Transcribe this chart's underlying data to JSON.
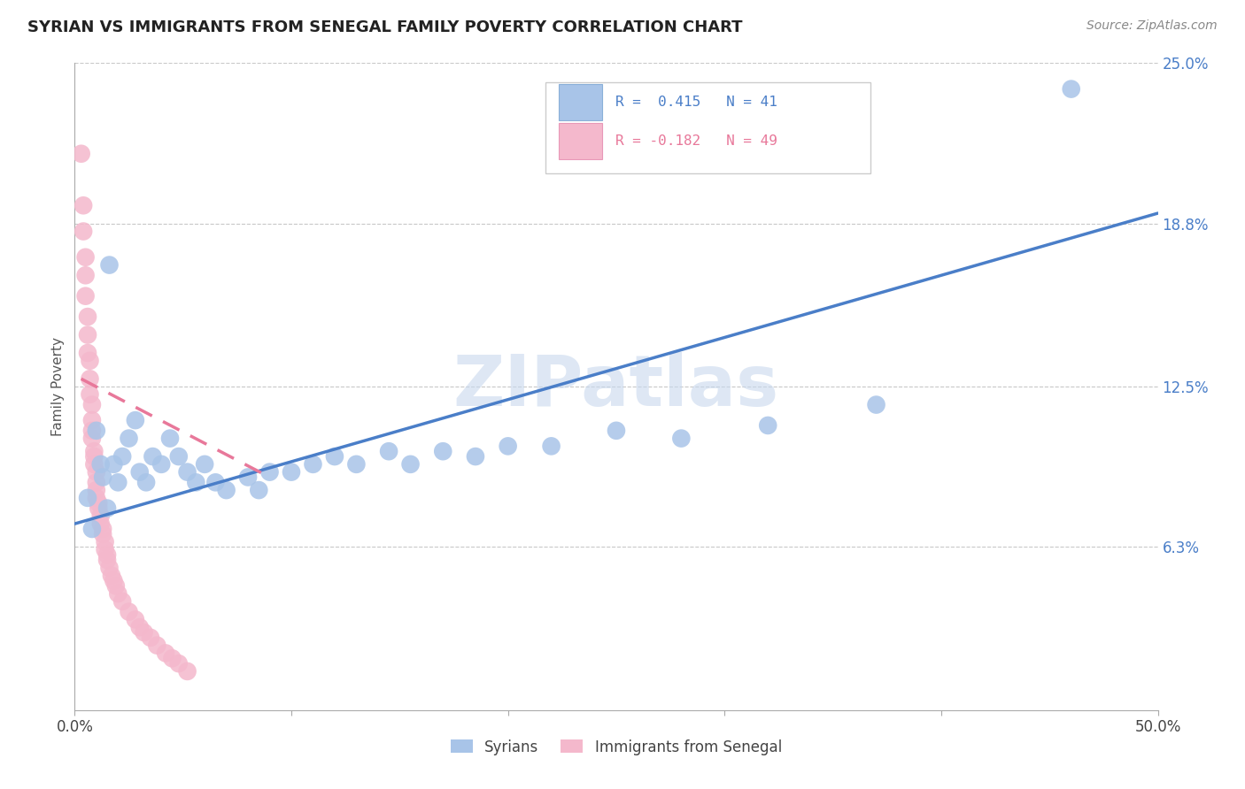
{
  "title": "SYRIAN VS IMMIGRANTS FROM SENEGAL FAMILY POVERTY CORRELATION CHART",
  "source": "Source: ZipAtlas.com",
  "ylabel_label": "Family Poverty",
  "xlim": [
    0.0,
    0.5
  ],
  "ylim": [
    0.0,
    0.25
  ],
  "ytick_labels": [
    "6.3%",
    "12.5%",
    "18.8%",
    "25.0%"
  ],
  "ytick_positions": [
    0.063,
    0.125,
    0.188,
    0.25
  ],
  "grid_color": "#c8c8c8",
  "watermark": "ZIPatlas",
  "legend_R1": "R =  0.415",
  "legend_N1": "N = 41",
  "legend_R2": "R = -0.182",
  "legend_N2": "N = 49",
  "blue_color": "#a8c4e8",
  "pink_color": "#f4b8cc",
  "blue_line_color": "#4a7ec8",
  "pink_line_color": "#e8789a",
  "syrians_x": [
    0.006,
    0.008,
    0.01,
    0.012,
    0.013,
    0.015,
    0.016,
    0.018,
    0.02,
    0.022,
    0.025,
    0.028,
    0.03,
    0.033,
    0.036,
    0.04,
    0.044,
    0.048,
    0.052,
    0.056,
    0.06,
    0.065,
    0.07,
    0.08,
    0.085,
    0.09,
    0.1,
    0.11,
    0.12,
    0.13,
    0.145,
    0.155,
    0.17,
    0.185,
    0.2,
    0.22,
    0.25,
    0.28,
    0.32,
    0.37,
    0.46
  ],
  "syrians_y": [
    0.082,
    0.07,
    0.108,
    0.095,
    0.09,
    0.078,
    0.172,
    0.095,
    0.088,
    0.098,
    0.105,
    0.112,
    0.092,
    0.088,
    0.098,
    0.095,
    0.105,
    0.098,
    0.092,
    0.088,
    0.095,
    0.088,
    0.085,
    0.09,
    0.085,
    0.092,
    0.092,
    0.095,
    0.098,
    0.095,
    0.1,
    0.095,
    0.1,
    0.098,
    0.102,
    0.102,
    0.108,
    0.105,
    0.11,
    0.118,
    0.24
  ],
  "senegal_x": [
    0.003,
    0.004,
    0.004,
    0.005,
    0.005,
    0.005,
    0.006,
    0.006,
    0.006,
    0.007,
    0.007,
    0.007,
    0.008,
    0.008,
    0.008,
    0.008,
    0.009,
    0.009,
    0.009,
    0.01,
    0.01,
    0.01,
    0.01,
    0.011,
    0.011,
    0.012,
    0.012,
    0.013,
    0.013,
    0.014,
    0.014,
    0.015,
    0.015,
    0.016,
    0.017,
    0.018,
    0.019,
    0.02,
    0.022,
    0.025,
    0.028,
    0.03,
    0.032,
    0.035,
    0.038,
    0.042,
    0.045,
    0.048,
    0.052
  ],
  "senegal_y": [
    0.215,
    0.195,
    0.185,
    0.175,
    0.168,
    0.16,
    0.152,
    0.145,
    0.138,
    0.135,
    0.128,
    0.122,
    0.118,
    0.112,
    0.108,
    0.105,
    0.1,
    0.098,
    0.095,
    0.092,
    0.088,
    0.085,
    0.082,
    0.08,
    0.078,
    0.075,
    0.072,
    0.07,
    0.068,
    0.065,
    0.062,
    0.06,
    0.058,
    0.055,
    0.052,
    0.05,
    0.048,
    0.045,
    0.042,
    0.038,
    0.035,
    0.032,
    0.03,
    0.028,
    0.025,
    0.022,
    0.02,
    0.018,
    0.015
  ],
  "blue_trendline_x": [
    0.0,
    0.5
  ],
  "blue_trendline_y": [
    0.072,
    0.192
  ],
  "pink_trendline_x": [
    0.003,
    0.09
  ],
  "pink_trendline_y": [
    0.128,
    0.09
  ]
}
